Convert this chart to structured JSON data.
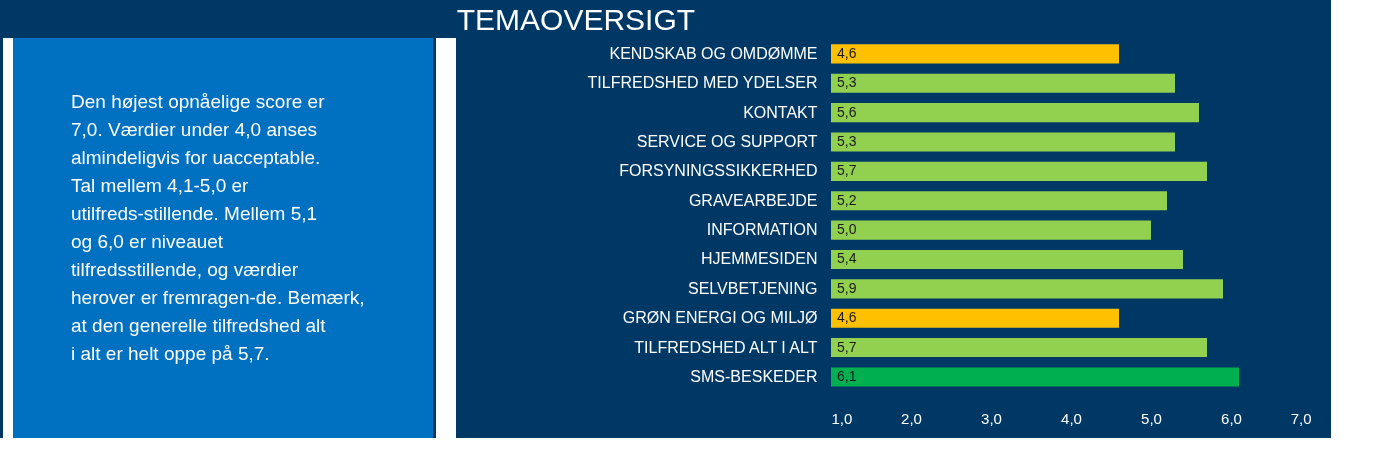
{
  "chart_data": {
    "type": "bar",
    "orientation": "horizontal",
    "title": "TEMAOVERSIGT",
    "categories": [
      "KENDSKAB OG OMDØMME",
      "TILFREDSHED MED YDELSER",
      "KONTAKT",
      "SERVICE OG SUPPORT",
      "FORSYNINGSSIKKERHED",
      "GRAVEARBEJDE",
      "INFORMATION",
      "HJEMMESIDEN",
      "SELVBETJENING",
      "GRØN ENERGI OG MILJØ",
      "TILFREDSHED ALT I ALT",
      "SMS-BESKEDER"
    ],
    "values": [
      4.6,
      5.3,
      5.6,
      5.3,
      5.7,
      5.2,
      5.0,
      5.4,
      5.9,
      4.6,
      5.7,
      6.1
    ],
    "value_labels": [
      "4,6",
      "5,3",
      "5,6",
      "5,3",
      "5,7",
      "5,2",
      "5,0",
      "5,4",
      "5,9",
      "4,6",
      "5,7",
      "6,1"
    ],
    "colors": [
      "#ffc000",
      "#92d050",
      "#92d050",
      "#92d050",
      "#92d050",
      "#92d050",
      "#92d050",
      "#92d050",
      "#92d050",
      "#ffc000",
      "#92d050",
      "#00b050"
    ],
    "xlim": [
      1.0,
      7.0
    ],
    "xticks": [
      {
        "value": 1,
        "label": "1,0"
      },
      {
        "value": 2,
        "label": "2,0"
      },
      {
        "value": 3,
        "label": "3,0"
      },
      {
        "value": 4,
        "label": "4,0"
      },
      {
        "value": 5,
        "label": "5,0"
      },
      {
        "value": 6,
        "label": "6,0"
      },
      {
        "value": 7,
        "label": "7,0"
      }
    ],
    "grid": false,
    "annotations": [
      "Den højest opnåelige score er 7,0. Værdier under 4,0 anses almindeligvis for uacceptable. Tal mellem 4,1-5,0 er utilfreds-stillende. Mellem 5,1 og 6,0 er niveauet tilfredsstillende, og værdier herover er fremragen-de. Bemærk, at den generelle tilfredshed alt i alt er helt oppe på 5,7."
    ]
  }
}
